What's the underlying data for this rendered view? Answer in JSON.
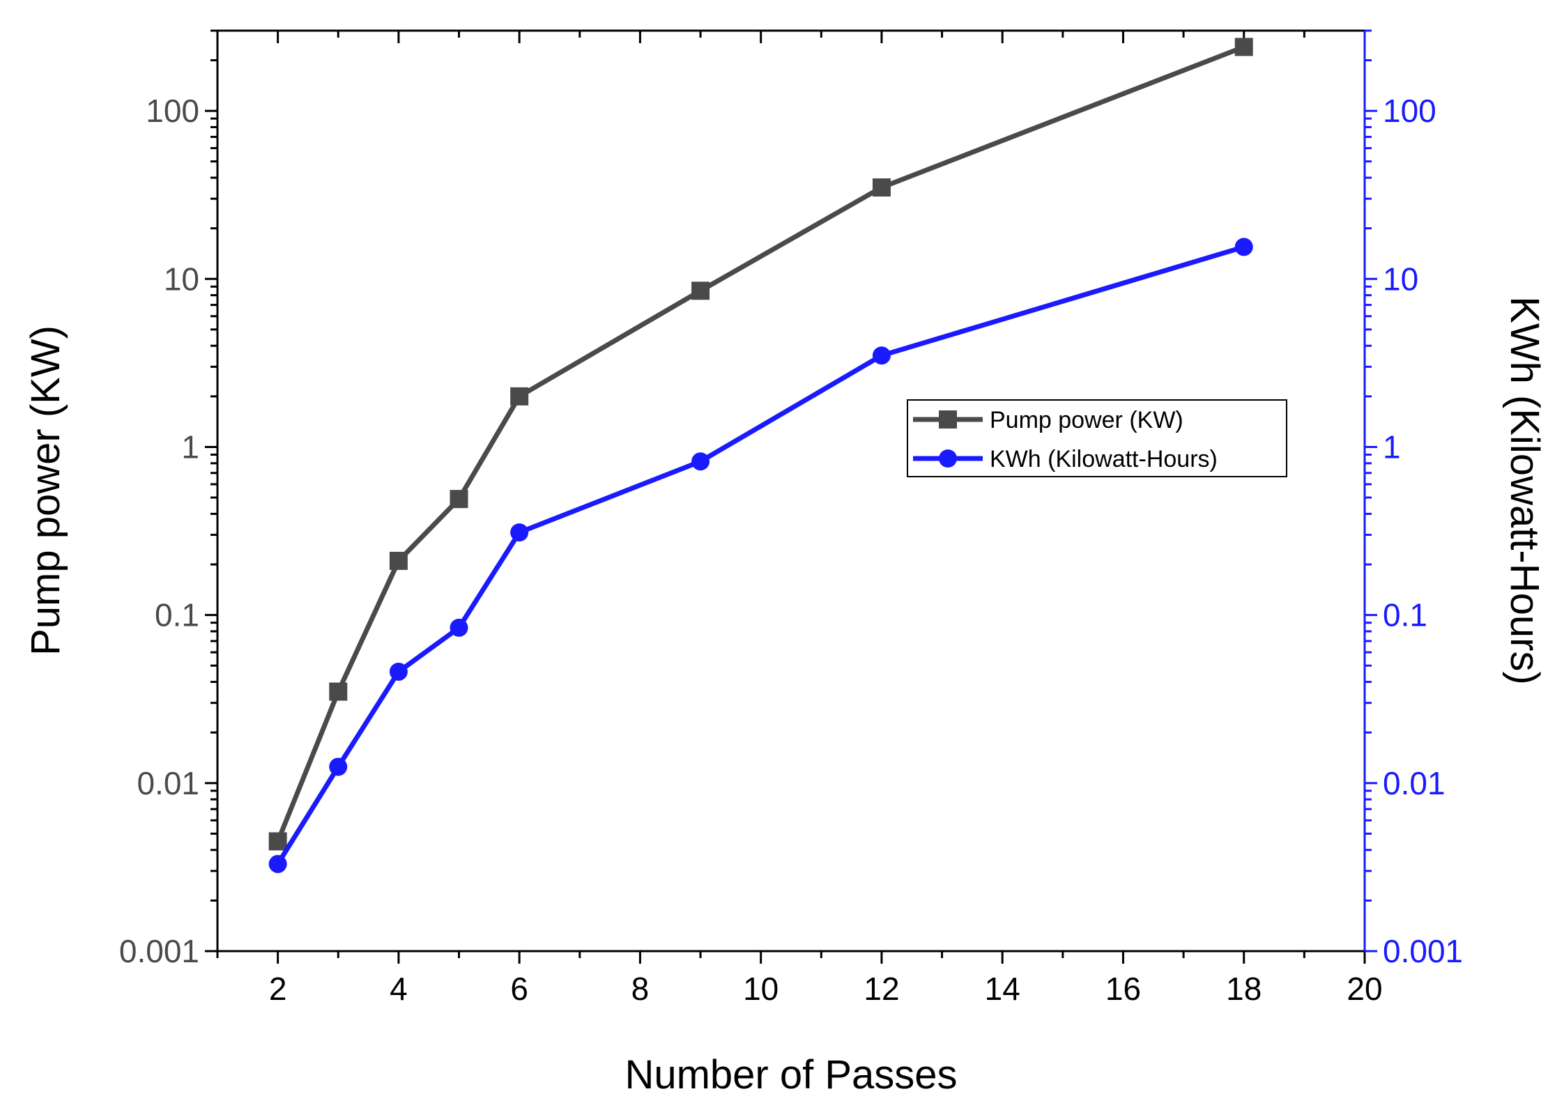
{
  "chart_data": {
    "type": "line",
    "x_scale": "linear",
    "y_scale": "log",
    "xlabel": "Number of Passes",
    "ylabel_left": "Pump power (KW)",
    "ylabel_right": "KWh (Kilowatt-Hours)",
    "xlim": [
      1,
      20
    ],
    "ylim": [
      0.001,
      300
    ],
    "x_ticks": [
      2,
      4,
      6,
      8,
      10,
      12,
      14,
      16,
      18,
      20
    ],
    "x_tick_labels": [
      "2",
      "4",
      "6",
      "8",
      "10",
      "12",
      "14",
      "16",
      "18",
      "20"
    ],
    "y_ticks": [
      0.001,
      0.01,
      0.1,
      1,
      10,
      100
    ],
    "y_tick_labels": [
      "0.001",
      "0.01",
      "0.1",
      "1",
      "10",
      "100"
    ],
    "grid": false,
    "legend_position": "center-right",
    "series": [
      {
        "name": "Pump power (KW)",
        "axis": "left",
        "color": "#4a4a4a",
        "marker": "square",
        "x": [
          2,
          3,
          4,
          5,
          6,
          9,
          12,
          18
        ],
        "values": [
          0.0045,
          0.035,
          0.21,
          0.49,
          2.0,
          8.5,
          35,
          240
        ]
      },
      {
        "name": "KWh (Kilowatt-Hours)",
        "axis": "right",
        "color": "#1a1aff",
        "marker": "circle",
        "x": [
          2,
          3,
          4,
          5,
          6,
          9,
          12,
          18
        ],
        "values": [
          0.0033,
          0.0125,
          0.046,
          0.084,
          0.31,
          0.82,
          3.5,
          15.5
        ]
      }
    ],
    "axis_colors": {
      "left": "#000000",
      "left_labels": "#4a4a4a",
      "right": "#1a1aff"
    }
  }
}
